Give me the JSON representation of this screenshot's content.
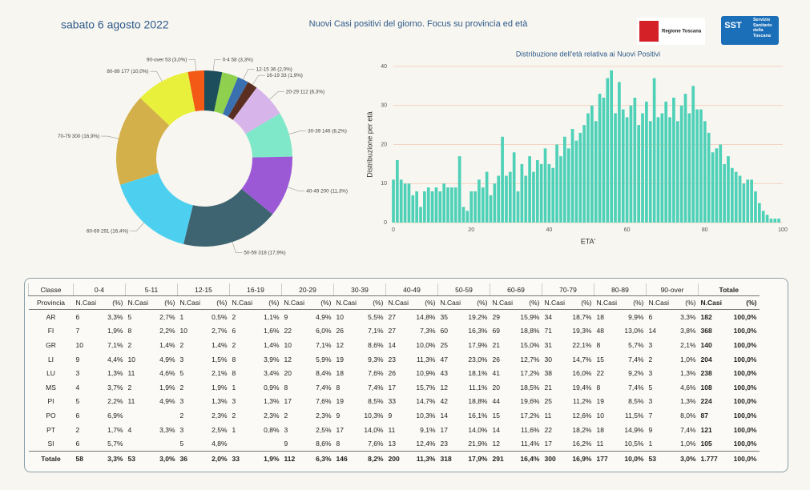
{
  "header": {
    "date": "sabato 6 agosto 2022",
    "title": "Nuovi Casi positivi del giorno. Focus su provincia ed età"
  },
  "logos": {
    "regione": "Regione Toscana",
    "sst_short": "SST",
    "sst": "Servizio Sanitario della Toscana"
  },
  "chart_data": [
    {
      "type": "donut",
      "categories": [
        "0-4",
        null,
        "12-15",
        "16-19",
        "20-29",
        "30-39",
        "40-49",
        "50-59",
        "60-69",
        "70-79",
        "80-89",
        "90-over"
      ],
      "values": [
        58,
        53,
        36,
        33,
        112,
        146,
        200,
        318,
        291,
        300,
        177,
        53
      ],
      "value_labels": [
        "58 (3,3%)",
        null,
        "36 (2,0%)",
        "33 (1,9%)",
        "112 (6,3%)",
        "146 (8,2%)",
        "200 (11,3%)",
        "318 (17,9%)",
        "291 (16,4%)",
        "300 (16,9%)",
        "177 (10,0%)",
        "53 (3,0%)"
      ],
      "colors": [
        "#1d4e5b",
        "#8fd14f",
        "#3a6fb0",
        "#5a2e20",
        "#d7b5ea",
        "#7ee8c9",
        "#9b59d6",
        "#3d6470",
        "#4dd0f0",
        "#d4b04a",
        "#e8f03c",
        "#f25a16"
      ]
    },
    {
      "type": "bar",
      "title": "Distribuzione dell'età relativa ai Nuovi Positivi",
      "x_label": "ETA'",
      "y_label": "Distribuzione per età",
      "x": [
        0,
        1,
        2,
        3,
        4,
        5,
        6,
        7,
        8,
        9,
        10,
        11,
        12,
        13,
        14,
        15,
        16,
        17,
        18,
        19,
        20,
        21,
        22,
        23,
        24,
        25,
        26,
        27,
        28,
        29,
        30,
        31,
        32,
        33,
        34,
        35,
        36,
        37,
        38,
        39,
        40,
        41,
        42,
        43,
        44,
        45,
        46,
        47,
        48,
        49,
        50,
        51,
        52,
        53,
        54,
        55,
        56,
        57,
        58,
        59,
        60,
        61,
        62,
        63,
        64,
        65,
        66,
        67,
        68,
        69,
        70,
        71,
        72,
        73,
        74,
        75,
        76,
        77,
        78,
        79,
        80,
        81,
        82,
        83,
        84,
        85,
        86,
        87,
        88,
        89,
        90,
        91,
        92,
        93,
        94,
        95,
        96,
        97,
        98,
        99,
        100
      ],
      "values": [
        11,
        16,
        11,
        10,
        10,
        7,
        8,
        4,
        8,
        9,
        8,
        9,
        8,
        10,
        9,
        9,
        9,
        17,
        4,
        3,
        8,
        8,
        11,
        9,
        13,
        7,
        10,
        12,
        22,
        12,
        13,
        18,
        8,
        15,
        12,
        17,
        13,
        16,
        15,
        19,
        15,
        14,
        20,
        17,
        22,
        19,
        24,
        21,
        23,
        25,
        28,
        30,
        26,
        33,
        32,
        37,
        39,
        28,
        36,
        29,
        27,
        30,
        32,
        25,
        28,
        31,
        26,
        37,
        27,
        28,
        31,
        27,
        32,
        26,
        30,
        33,
        28,
        35,
        29,
        29,
        26,
        23,
        18,
        19,
        20,
        15,
        17,
        14,
        13,
        12,
        10,
        11,
        11,
        8,
        5,
        3,
        2,
        1,
        1,
        1,
        0
      ],
      "color": "#4fd1b8",
      "xlim": [
        0,
        100
      ],
      "xticks": [
        0,
        20,
        40,
        60,
        80,
        100
      ],
      "ylim": [
        0,
        40
      ],
      "yticks": [
        0,
        10,
        20,
        30,
        40
      ],
      "grid": true
    }
  ],
  "table": {
    "header1": [
      "Classe",
      "0-4",
      "5-11",
      "12-15",
      "16-19",
      "20-29",
      "30-39",
      "40-49",
      "50-59",
      "60-69",
      "70-79",
      "80-89",
      "90-over",
      "Totale"
    ],
    "header2": [
      "Provincia",
      "N.Casi",
      "(%)"
    ],
    "rows": [
      [
        "AR",
        "6",
        "3,3%",
        "5",
        "2,7%",
        "1",
        "0,5%",
        "2",
        "1,1%",
        "9",
        "4,9%",
        "10",
        "5,5%",
        "27",
        "14,8%",
        "35",
        "19,2%",
        "29",
        "15,9%",
        "34",
        "18,7%",
        "18",
        "9,9%",
        "6",
        "3,3%",
        "182",
        "100,0%"
      ],
      [
        "FI",
        "7",
        "1,9%",
        "8",
        "2,2%",
        "10",
        "2,7%",
        "6",
        "1,6%",
        "22",
        "6,0%",
        "26",
        "7,1%",
        "27",
        "7,3%",
        "60",
        "16,3%",
        "69",
        "18,8%",
        "71",
        "19,3%",
        "48",
        "13,0%",
        "14",
        "3,8%",
        "368",
        "100,0%"
      ],
      [
        "GR",
        "10",
        "7,1%",
        "2",
        "1,4%",
        "2",
        "1,4%",
        "2",
        "1,4%",
        "10",
        "7,1%",
        "12",
        "8,6%",
        "14",
        "10,0%",
        "25",
        "17,9%",
        "21",
        "15,0%",
        "31",
        "22,1%",
        "8",
        "5,7%",
        "3",
        "2,1%",
        "140",
        "100,0%"
      ],
      [
        "LI",
        "9",
        "4,4%",
        "10",
        "4,9%",
        "3",
        "1,5%",
        "8",
        "3,9%",
        "12",
        "5,9%",
        "19",
        "9,3%",
        "23",
        "11,3%",
        "47",
        "23,0%",
        "26",
        "12,7%",
        "30",
        "14,7%",
        "15",
        "7,4%",
        "2",
        "1,0%",
        "204",
        "100,0%"
      ],
      [
        "LU",
        "3",
        "1,3%",
        "11",
        "4,6%",
        "5",
        "2,1%",
        "8",
        "3,4%",
        "20",
        "8,4%",
        "18",
        "7,6%",
        "26",
        "10,9%",
        "43",
        "18,1%",
        "41",
        "17,2%",
        "38",
        "16,0%",
        "22",
        "9,2%",
        "3",
        "1,3%",
        "238",
        "100,0%"
      ],
      [
        "MS",
        "4",
        "3,7%",
        "2",
        "1,9%",
        "2",
        "1,9%",
        "1",
        "0,9%",
        "8",
        "7,4%",
        "8",
        "7,4%",
        "17",
        "15,7%",
        "12",
        "11,1%",
        "20",
        "18,5%",
        "21",
        "19,4%",
        "8",
        "7,4%",
        "5",
        "4,6%",
        "108",
        "100,0%"
      ],
      [
        "PI",
        "5",
        "2,2%",
        "11",
        "4,9%",
        "3",
        "1,3%",
        "3",
        "1,3%",
        "17",
        "7,6%",
        "19",
        "8,5%",
        "33",
        "14,7%",
        "42",
        "18,8%",
        "44",
        "19,6%",
        "25",
        "11,2%",
        "19",
        "8,5%",
        "3",
        "1,3%",
        "224",
        "100,0%"
      ],
      [
        "PO",
        "6",
        "6,9%",
        null,
        null,
        "2",
        "2,3%",
        "2",
        "2,3%",
        "2",
        "2,3%",
        "9",
        "10,3%",
        "9",
        "10,3%",
        "14",
        "16,1%",
        "15",
        "17,2%",
        "11",
        "12,6%",
        "10",
        "11,5%",
        "7",
        "8,0%",
        "87",
        "100,0%"
      ],
      [
        "PT",
        "2",
        "1,7%",
        "4",
        "3,3%",
        "3",
        "2,5%",
        "1",
        "0,8%",
        "3",
        "2,5%",
        "17",
        "14,0%",
        "11",
        "9,1%",
        "17",
        "14,0%",
        "14",
        "11,6%",
        "22",
        "18,2%",
        "18",
        "14,9%",
        "9",
        "7,4%",
        "121",
        "100,0%"
      ],
      [
        "SI",
        "6",
        "5,7%",
        null,
        null,
        "5",
        "4,8%",
        null,
        null,
        "9",
        "8,6%",
        "8",
        "7,6%",
        "13",
        "12,4%",
        "23",
        "21,9%",
        "12",
        "11,4%",
        "17",
        "16,2%",
        "11",
        "10,5%",
        "1",
        "1,0%",
        "105",
        "100,0%"
      ],
      [
        "Totale",
        "58",
        "3,3%",
        "53",
        "3,0%",
        "36",
        "2,0%",
        "33",
        "1,9%",
        "112",
        "6,3%",
        "146",
        "8,2%",
        "200",
        "11,3%",
        "318",
        "17,9%",
        "291",
        "16,4%",
        "300",
        "16,9%",
        "177",
        "10,0%",
        "53",
        "3,0%",
        "1.777",
        "100,0%"
      ]
    ]
  }
}
